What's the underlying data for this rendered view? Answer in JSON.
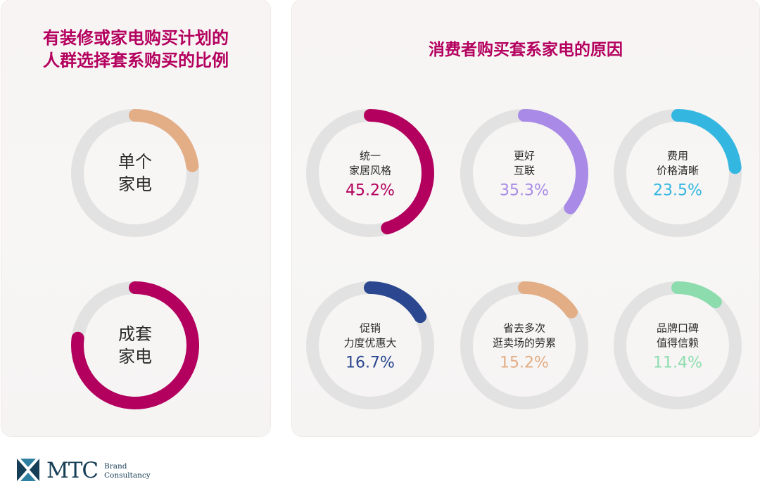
{
  "left_title": {
    "line1": "有装修或家电购买计划的",
    "line2": "人群选择套系购买的比例"
  },
  "right_title": "消费者购买套系家电的原因",
  "left_donuts": [
    {
      "label": [
        "单个",
        "家电"
      ],
      "color": "#e3ad86"
    },
    {
      "label": [
        "成套",
        "家电"
      ],
      "color": "#b3005e"
    }
  ],
  "right_donuts": [
    {
      "label": [
        "统一",
        "家居风格"
      ],
      "value": "45.2%",
      "color": "#b3005e"
    },
    {
      "label": [
        "更好",
        "互联"
      ],
      "value": "35.3%",
      "color": "#a98ae6"
    },
    {
      "label": [
        "费用",
        "价格清晰"
      ],
      "value": "23.5%",
      "color": "#33b7e0"
    },
    {
      "label": [
        "促销",
        "力度优惠大"
      ],
      "value": "16.7%",
      "color": "#2a4790"
    },
    {
      "label": [
        "省去多次",
        "逛卖场的劳累"
      ],
      "value": "15.2%",
      "color": "#e3ad86"
    },
    {
      "label": [
        "品牌口碑",
        "值得信赖"
      ],
      "value": "11.4%",
      "color": "#8ddcae"
    }
  ],
  "chart_data": [
    {
      "type": "pie",
      "title": "有装修或家电购买计划的人群选择套系购买的比例",
      "categories": [
        "单个家电",
        "成套家电"
      ],
      "values": [
        0.23,
        0.77
      ]
    },
    {
      "type": "pie",
      "title": "消费者购买套系家电的原因",
      "categories": [
        "统一家居风格",
        "更好互联",
        "费用价格清晰",
        "促销力度优惠大",
        "省去多次逛卖场的劳累",
        "品牌口碑值得信赖"
      ],
      "values": [
        45.2,
        35.3,
        23.5,
        16.7,
        15.2,
        11.4
      ]
    }
  ],
  "logo": {
    "mark": "MTC",
    "sub1": "Brand",
    "sub2": "Consultancy"
  }
}
